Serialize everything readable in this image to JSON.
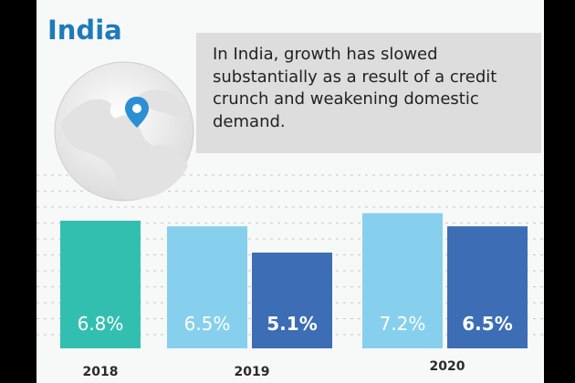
{
  "header": {
    "title": "India"
  },
  "caption": {
    "text": "In India, growth has slowed substantially as a result of a credit crunch and weakening domestic demand."
  },
  "icons": {
    "globe": "globe-map-icon",
    "pin": "location-pin-icon"
  },
  "colors": {
    "title": "#1e7bb9",
    "teal": "#33bfb0",
    "light_blue": "#86d0ee",
    "dark_blue": "#3c6db5",
    "caption_bg": "#dddddd",
    "pin": "#2b8fd4"
  },
  "chart_data": {
    "type": "bar",
    "categories": [
      "2018",
      "2019",
      "2019",
      "2020",
      "2020"
    ],
    "groups": [
      "2018",
      "2019",
      "2020"
    ],
    "values": [
      6.8,
      6.5,
      5.1,
      7.2,
      6.5
    ],
    "value_labels": [
      "6.8%",
      "6.5%",
      "5.1%",
      "7.2%",
      "6.5%"
    ],
    "bar_colors": [
      "#33bfb0",
      "#86d0ee",
      "#3c6db5",
      "#86d0ee",
      "#3c6db5"
    ],
    "bold_labels": [
      false,
      false,
      true,
      false,
      true
    ],
    "grid": true,
    "title": "",
    "xlabel": "",
    "ylabel": ""
  }
}
